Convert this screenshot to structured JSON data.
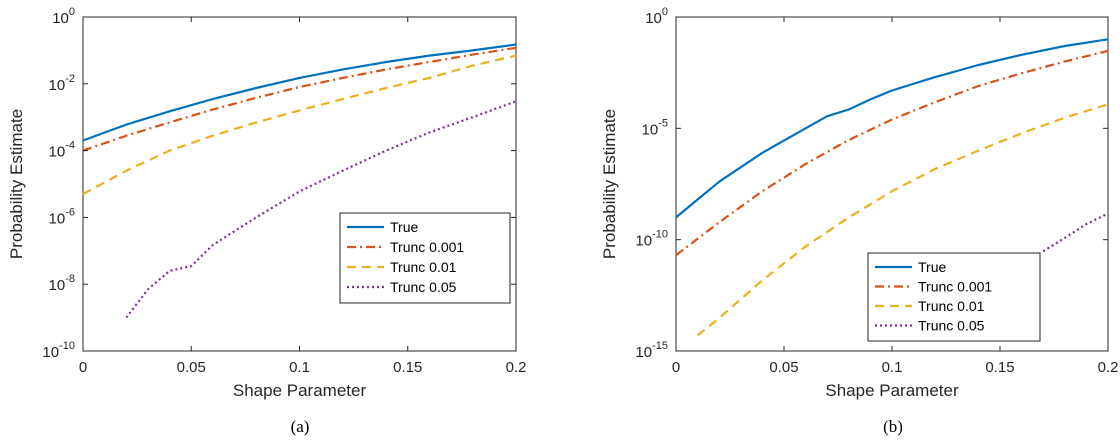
{
  "figure": {
    "captions": [
      "(a)",
      "(b)"
    ]
  },
  "chart_data": [
    {
      "type": "line",
      "caption": "(a)",
      "xlabel": "Shape Parameter",
      "ylabel": "Probability Estimate",
      "xlim": [
        0,
        0.2
      ],
      "ylim": [
        1e-10,
        1
      ],
      "yscale": "log",
      "xticks": [
        0,
        0.05,
        0.1,
        0.15,
        0.2
      ],
      "xtick_labels": [
        "0",
        "0.05",
        "0.1",
        "0.15",
        "0.2"
      ],
      "yticks": [
        1e-10,
        1e-08,
        1e-06,
        0.0001,
        0.01,
        1
      ],
      "ytick_labels": [
        {
          "base": "10",
          "exp": "-10"
        },
        {
          "base": "10",
          "exp": "-8"
        },
        {
          "base": "10",
          "exp": "-6"
        },
        {
          "base": "10",
          "exp": "-4"
        },
        {
          "base": "10",
          "exp": "-2"
        },
        {
          "base": "10",
          "exp": "0"
        }
      ],
      "grid": false,
      "legend_position": "bottom-right",
      "series": [
        {
          "name": "True",
          "color": "#0072BD",
          "dash": "solid",
          "x": [
            0,
            0.02,
            0.04,
            0.06,
            0.08,
            0.1,
            0.12,
            0.14,
            0.16,
            0.18,
            0.2
          ],
          "y": [
            0.0002,
            0.0006,
            0.0015,
            0.0035,
            0.0075,
            0.015,
            0.027,
            0.045,
            0.07,
            0.1,
            0.15
          ]
        },
        {
          "name": "Trunc 0.001",
          "color": "#D95319",
          "dash": "dashdot",
          "x": [
            0,
            0.02,
            0.04,
            0.06,
            0.08,
            0.1,
            0.12,
            0.14,
            0.16,
            0.18,
            0.2
          ],
          "y": [
            0.0001,
            0.00028,
            0.0007,
            0.0017,
            0.0038,
            0.008,
            0.015,
            0.027,
            0.045,
            0.075,
            0.12
          ]
        },
        {
          "name": "Trunc 0.01",
          "color": "#EDB120",
          "dash": "dashed",
          "x": [
            0,
            0.02,
            0.04,
            0.06,
            0.08,
            0.1,
            0.12,
            0.14,
            0.16,
            0.18,
            0.2
          ],
          "y": [
            5e-06,
            2.5e-05,
            0.0001,
            0.00028,
            0.0007,
            0.0016,
            0.0035,
            0.0075,
            0.015,
            0.035,
            0.07
          ]
        },
        {
          "name": "Trunc 0.05",
          "color": "#7E2F8E",
          "dash": "dotted",
          "x": [
            0.02,
            0.03,
            0.04,
            0.05,
            0.06,
            0.08,
            0.1,
            0.12,
            0.14,
            0.16,
            0.18,
            0.2
          ],
          "y": [
            1e-09,
            7e-09,
            2.5e-08,
            3.5e-08,
            1.5e-07,
            1e-06,
            6e-06,
            2.5e-05,
            0.0001,
            0.00035,
            0.001,
            0.003
          ]
        }
      ]
    },
    {
      "type": "line",
      "caption": "(b)",
      "xlabel": "Shape Parameter",
      "ylabel": "Probability Estimate",
      "xlim": [
        0,
        0.2
      ],
      "ylim": [
        1e-15,
        1
      ],
      "yscale": "log",
      "xticks": [
        0,
        0.05,
        0.1,
        0.15,
        0.2
      ],
      "xtick_labels": [
        "0",
        "0.05",
        "0.1",
        "0.15",
        "0.2"
      ],
      "yticks": [
        1e-15,
        1e-10,
        1e-05,
        1
      ],
      "ytick_labels": [
        {
          "base": "10",
          "exp": "-15"
        },
        {
          "base": "10",
          "exp": "-10"
        },
        {
          "base": "10",
          "exp": "-5"
        },
        {
          "base": "10",
          "exp": "0"
        }
      ],
      "grid": false,
      "legend_position": "bottom-center",
      "series": [
        {
          "name": "True",
          "color": "#0072BD",
          "dash": "solid",
          "x": [
            0,
            0.02,
            0.04,
            0.06,
            0.07,
            0.08,
            0.09,
            0.1,
            0.12,
            0.14,
            0.16,
            0.18,
            0.2
          ],
          "y": [
            1e-09,
            4e-08,
            8e-07,
            1e-05,
            3.5e-05,
            7e-05,
            0.0002,
            0.0005,
            0.002,
            0.007,
            0.02,
            0.05,
            0.1
          ]
        },
        {
          "name": "Trunc 0.001",
          "color": "#D95319",
          "dash": "dashdot",
          "x": [
            0,
            0.02,
            0.04,
            0.06,
            0.08,
            0.1,
            0.12,
            0.14,
            0.16,
            0.18,
            0.2
          ],
          "y": [
            2e-11,
            6e-10,
            1.5e-08,
            2.5e-07,
            3e-06,
            2.5e-05,
            0.00015,
            0.0008,
            0.003,
            0.01,
            0.03
          ]
        },
        {
          "name": "Trunc 0.01",
          "color": "#EDB120",
          "dash": "dashed",
          "x": [
            0.01,
            0.02,
            0.04,
            0.06,
            0.08,
            0.1,
            0.12,
            0.14,
            0.16,
            0.18,
            0.2
          ],
          "y": [
            5e-15,
            3e-14,
            1.5e-12,
            5e-11,
            1e-09,
            1.5e-08,
            1.5e-07,
            1e-06,
            6e-06,
            3e-05,
            0.00012
          ]
        },
        {
          "name": "Trunc 0.05",
          "color": "#7E2F8E",
          "dash": "dotted",
          "x": [
            0.17,
            0.18,
            0.19,
            0.2
          ],
          "y": [
            3e-11,
            1.2e-10,
            5e-10,
            1.5e-09
          ]
        }
      ]
    }
  ]
}
